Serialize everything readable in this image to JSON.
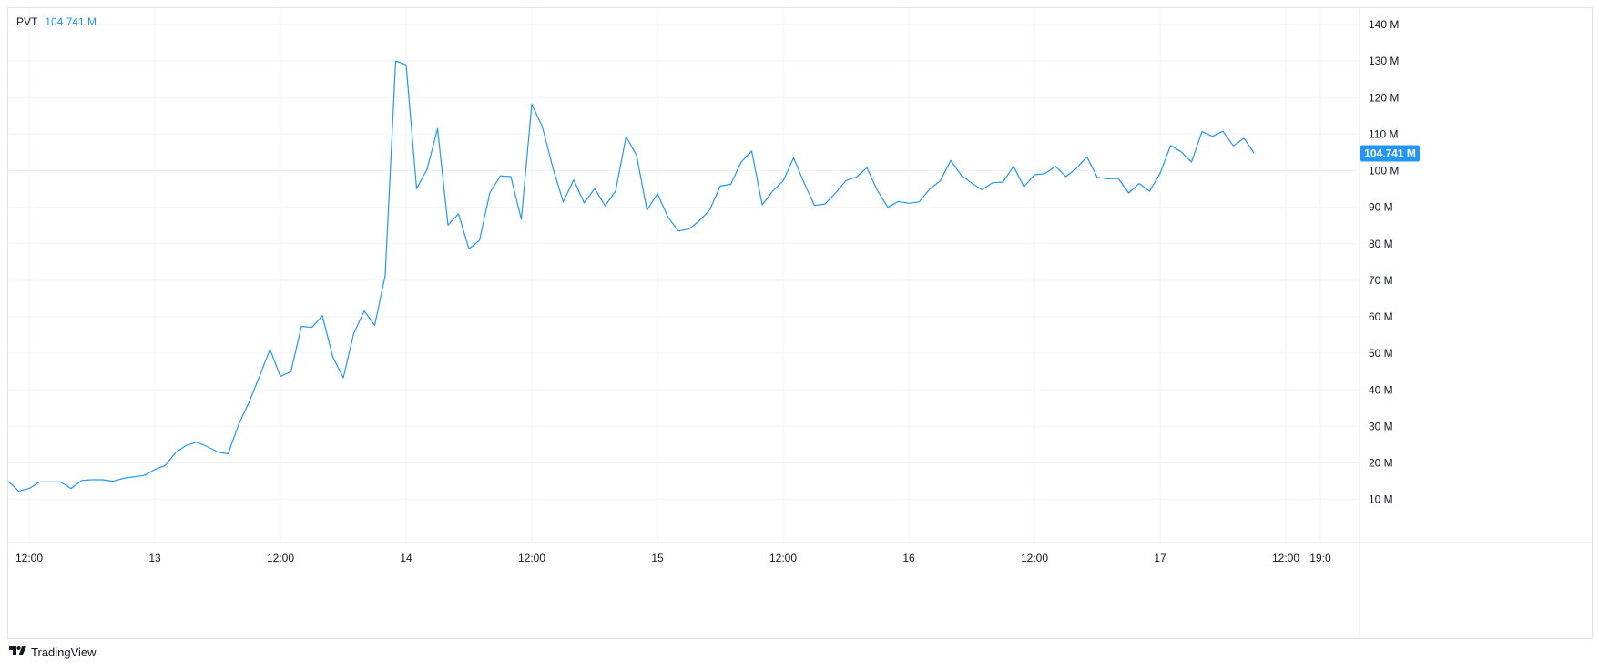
{
  "legend": {
    "name": "PVT",
    "value": "104.741 M"
  },
  "last_value_label": "104.741 M",
  "brand": {
    "name": "TradingView",
    "mark_icon": "tradingview-logo-icon"
  },
  "colors": {
    "line": "#2196f3",
    "grid": "#f0f3fa",
    "border": "#e0e3eb",
    "text": "#131722"
  },
  "chart_data": {
    "type": "line",
    "title": "",
    "y_tick_labels": [
      "10 M",
      "20 M",
      "30 M",
      "40 M",
      "50 M",
      "60 M",
      "70 M",
      "80 M",
      "90 M",
      "100 M",
      "110 M",
      "120 M",
      "130 M",
      "140 M"
    ],
    "y_ticks": [
      10,
      20,
      30,
      40,
      50,
      60,
      70,
      80,
      90,
      100,
      110,
      120,
      130,
      140
    ],
    "ylim": [
      -1.8,
      144.5
    ],
    "y_unit": "M",
    "x_ticks": [
      {
        "label": "12:00",
        "pos": 2
      },
      {
        "label": "13",
        "pos": 14
      },
      {
        "label": "12:00",
        "pos": 26
      },
      {
        "label": "14",
        "pos": 38
      },
      {
        "label": "12:00",
        "pos": 50
      },
      {
        "label": "15",
        "pos": 62
      },
      {
        "label": "12:00",
        "pos": 74
      },
      {
        "label": "16",
        "pos": 86
      },
      {
        "label": "12:00",
        "pos": 98
      },
      {
        "label": "17",
        "pos": 110
      },
      {
        "label": "12:00",
        "pos": 122
      },
      {
        "label": "19:0",
        "pos": 125.3
      }
    ],
    "xlim": [
      0,
      129.7
    ],
    "grid": true,
    "series": [
      {
        "name": "PVT",
        "values": [
          15.0,
          12.3,
          13.0,
          14.8,
          14.8,
          14.8,
          13.0,
          15.2,
          15.4,
          15.4,
          15.0,
          15.8,
          16.2,
          16.6,
          18.2,
          19.3,
          22.9,
          24.8,
          25.7,
          24.5,
          23.0,
          22.5,
          30.5,
          36.6,
          43.7,
          51.1,
          43.7,
          45.0,
          57.4,
          57.1,
          60.3,
          49.0,
          43.3,
          55.5,
          61.6,
          57.7,
          71.3,
          130.0,
          129.0,
          95.1,
          100.4,
          111.5,
          85.1,
          88.2,
          78.6,
          80.9,
          94.0,
          98.6,
          98.4,
          86.7,
          118.2,
          112.1,
          100.9,
          91.5,
          97.5,
          91.2,
          95.1,
          90.4,
          94.4,
          109.3,
          104.3,
          89.2,
          93.7,
          87.3,
          83.5,
          84.0,
          86.3,
          89.3,
          95.8,
          96.3,
          102.4,
          105.4,
          90.7,
          94.4,
          97.2,
          103.5,
          96.7,
          90.5,
          90.9,
          93.9,
          97.3,
          98.3,
          100.8,
          94.6,
          90.0,
          91.6,
          91.1,
          91.5,
          95.0,
          97.2,
          102.8,
          98.8,
          96.6,
          94.8,
          96.7,
          96.9,
          101.2,
          95.6,
          98.9,
          99.2,
          101.2,
          98.4,
          100.6,
          103.8,
          98.2,
          97.8,
          97.9,
          93.9,
          96.5,
          94.4,
          99.3,
          106.9,
          105.2,
          102.4,
          110.7,
          109.4,
          110.8,
          106.8,
          108.9,
          104.741
        ]
      }
    ]
  }
}
